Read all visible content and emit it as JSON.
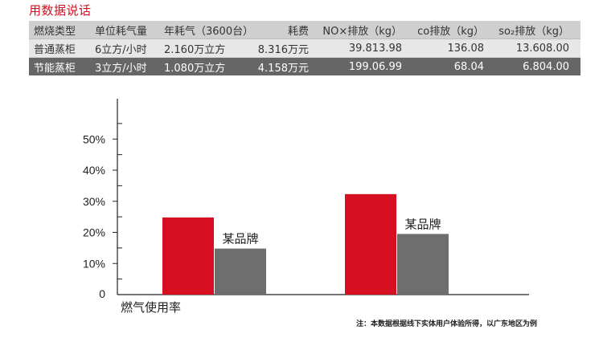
{
  "page_title": "用数据说话",
  "table": {
    "headers": [
      "燃烧类型",
      "单位耗气量",
      "年耗气（3600台）",
      "耗费",
      "NO×排放（kg）",
      "co排放（kg）",
      "so₂排放（kg）"
    ],
    "rows": [
      [
        "普通蒸柜",
        "6立方/小时",
        "2.160万立方",
        "8.316万元",
        "39.813.98",
        "136.08",
        "13.608.00"
      ],
      [
        "节能蒸柜",
        "3立方/小时",
        "1.080万立方",
        "4.158万元",
        "199.06.99",
        "68.04",
        "6.804.00"
      ]
    ]
  },
  "colors": {
    "red": "#d61020",
    "gray": "#6e6e6e",
    "title_red": "#d01020"
  },
  "chart_data": {
    "type": "bar",
    "ylim": [
      0,
      60
    ],
    "yticks": [
      {
        "value": 0,
        "label": "0"
      },
      {
        "value": 10,
        "label": "10%"
      },
      {
        "value": 20,
        "label": "20%"
      },
      {
        "value": 30,
        "label": "30%"
      },
      {
        "value": 40,
        "label": "40%"
      },
      {
        "value": 50,
        "label": "50%"
      }
    ],
    "xlabel": "燃气使用率",
    "groups": [
      {
        "bars": [
          {
            "value": 24.8,
            "color": "red"
          },
          {
            "value": 14.8,
            "color": "gray",
            "label": "某品牌"
          }
        ]
      },
      {
        "bars": [
          {
            "value": 32.3,
            "color": "red"
          },
          {
            "value": 19.5,
            "color": "gray",
            "label": "某品牌"
          }
        ]
      }
    ],
    "grid": false
  },
  "note": "注：本数据根据线下实体用户体验所得，以广东地区为例"
}
